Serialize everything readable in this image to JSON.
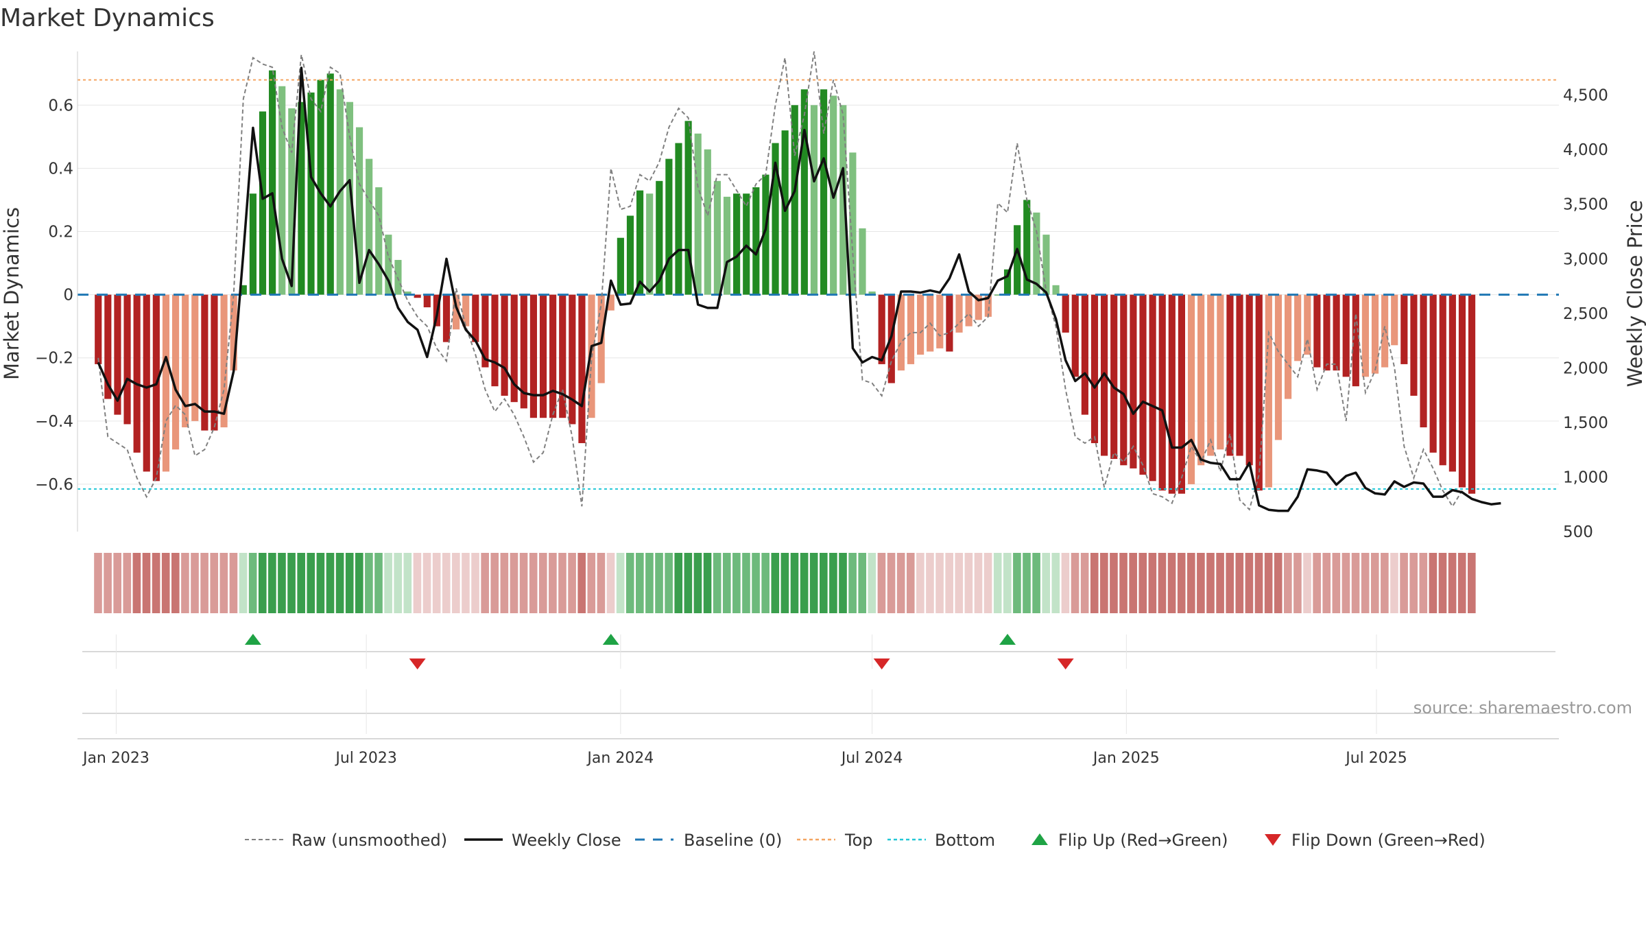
{
  "chart_data": {
    "type": "bar",
    "title": "Market Dynamics",
    "ylabel_left": "Market Dynamics",
    "ylabel_right": "Weekly Close Price",
    "source": "source: sharemaestro.com",
    "x_start": "2022-12-19",
    "x_step_days": 7,
    "x_range": [
      "2022-12-04",
      "2025-11-10"
    ],
    "ylim_left": [
      -0.75,
      0.77
    ],
    "ylim_right": [
      500,
      4900
    ],
    "yticks_left": [
      {
        "v": 0.6,
        "label": "0.6"
      },
      {
        "v": 0.4,
        "label": "0.4"
      },
      {
        "v": 0.2,
        "label": "0.2"
      },
      {
        "v": 0,
        "label": "0"
      },
      {
        "v": -0.2,
        "label": "−0.2"
      },
      {
        "v": -0.4,
        "label": "−0.4"
      },
      {
        "v": -0.6,
        "label": "−0.6"
      }
    ],
    "yticks_right": [
      {
        "v": 4500,
        "label": "4,500"
      },
      {
        "v": 4000,
        "label": "4,000"
      },
      {
        "v": 3500,
        "label": "3,500"
      },
      {
        "v": 3000,
        "label": "3,000"
      },
      {
        "v": 2500,
        "label": "2,500"
      },
      {
        "v": 2000,
        "label": "2,000"
      },
      {
        "v": 1500,
        "label": "1,500"
      },
      {
        "v": 1000,
        "label": "1,000"
      },
      {
        "v": 500,
        "label": "500"
      }
    ],
    "xticks": [
      {
        "date": "2023-01-01",
        "label": "Jan 2023"
      },
      {
        "date": "2023-07-01",
        "label": "Jul 2023"
      },
      {
        "date": "2024-01-01",
        "label": "Jan 2024"
      },
      {
        "date": "2024-07-01",
        "label": "Jul 2024"
      },
      {
        "date": "2025-01-01",
        "label": "Jan 2025"
      },
      {
        "date": "2025-07-01",
        "label": "Jul 2025"
      }
    ],
    "top_line": 0.68,
    "bottom_line": -0.615,
    "baseline": 0,
    "grid": true,
    "legend_position": "bottom",
    "series": [
      {
        "name": "Market Dynamics",
        "kind": "bar",
        "values": [
          -0.22,
          -0.33,
          -0.38,
          -0.41,
          -0.5,
          -0.56,
          -0.59,
          -0.56,
          -0.49,
          -0.42,
          -0.4,
          -0.43,
          -0.43,
          -0.42,
          -0.24,
          0.03,
          0.32,
          0.58,
          0.71,
          0.66,
          0.59,
          0.61,
          0.64,
          0.68,
          0.7,
          0.65,
          0.61,
          0.53,
          0.43,
          0.34,
          0.19,
          0.11,
          0.01,
          -0.01,
          -0.04,
          -0.1,
          -0.15,
          -0.11,
          -0.1,
          -0.15,
          -0.23,
          -0.29,
          -0.32,
          -0.34,
          -0.36,
          -0.39,
          -0.39,
          -0.39,
          -0.39,
          -0.41,
          -0.47,
          -0.39,
          -0.28,
          -0.05,
          0.18,
          0.25,
          0.33,
          0.32,
          0.36,
          0.43,
          0.48,
          0.55,
          0.51,
          0.46,
          0.36,
          0.31,
          0.32,
          0.32,
          0.34,
          0.38,
          0.48,
          0.52,
          0.6,
          0.65,
          0.6,
          0.65,
          0.63,
          0.6,
          0.45,
          0.21,
          0.01,
          -0.22,
          -0.28,
          -0.24,
          -0.22,
          -0.19,
          -0.18,
          -0.17,
          -0.18,
          -0.12,
          -0.1,
          -0.08,
          -0.07,
          0.0,
          0.08,
          0.22,
          0.3,
          0.26,
          0.19,
          0.03,
          -0.12,
          -0.26,
          -0.38,
          -0.47,
          -0.51,
          -0.52,
          -0.54,
          -0.55,
          -0.57,
          -0.59,
          -0.62,
          -0.63,
          -0.63,
          -0.6,
          -0.54,
          -0.51,
          -0.49,
          -0.51,
          -0.51,
          -0.54,
          -0.62,
          -0.61,
          -0.46,
          -0.33,
          -0.21,
          -0.19,
          -0.23,
          -0.24,
          -0.24,
          -0.26,
          -0.29,
          -0.26,
          -0.25,
          -0.23,
          -0.16,
          -0.22,
          -0.32,
          -0.42,
          -0.5,
          -0.54,
          -0.56,
          -0.61,
          -0.63
        ]
      },
      {
        "name": "Raw (unsmoothed)",
        "kind": "line",
        "values": [
          -0.2,
          -0.45,
          -0.47,
          -0.49,
          -0.58,
          -0.64,
          -0.58,
          -0.4,
          -0.35,
          -0.38,
          -0.51,
          -0.49,
          -0.42,
          -0.3,
          0.0,
          0.62,
          0.75,
          0.73,
          0.72,
          0.53,
          0.45,
          0.76,
          0.62,
          0.58,
          0.72,
          0.7,
          0.5,
          0.35,
          0.3,
          0.25,
          0.12,
          0.05,
          -0.02,
          -0.07,
          -0.1,
          -0.17,
          -0.21,
          0.02,
          -0.1,
          -0.19,
          -0.3,
          -0.37,
          -0.33,
          -0.38,
          -0.45,
          -0.53,
          -0.5,
          -0.38,
          -0.3,
          -0.45,
          -0.67,
          -0.2,
          -0.03,
          0.4,
          0.27,
          0.28,
          0.38,
          0.36,
          0.42,
          0.53,
          0.59,
          0.56,
          0.34,
          0.25,
          0.38,
          0.38,
          0.33,
          0.28,
          0.35,
          0.38,
          0.6,
          0.75,
          0.44,
          0.57,
          0.77,
          0.51,
          0.68,
          0.57,
          0.13,
          -0.27,
          -0.28,
          -0.32,
          -0.21,
          -0.15,
          -0.12,
          -0.12,
          -0.09,
          -0.13,
          -0.12,
          -0.09,
          -0.06,
          -0.1,
          -0.07,
          0.29,
          0.26,
          0.48,
          0.3,
          0.2,
          0.01,
          -0.1,
          -0.3,
          -0.45,
          -0.47,
          -0.45,
          -0.61,
          -0.5,
          -0.53,
          -0.48,
          -0.54,
          -0.63,
          -0.64,
          -0.66,
          -0.58,
          -0.48,
          -0.53,
          -0.46,
          -0.56,
          -0.44,
          -0.65,
          -0.68,
          -0.57,
          -0.12,
          -0.18,
          -0.22,
          -0.26,
          -0.14,
          -0.3,
          -0.22,
          -0.22,
          -0.4,
          -0.06,
          -0.31,
          -0.24,
          -0.1,
          -0.23,
          -0.48,
          -0.58,
          -0.49,
          -0.55,
          -0.62,
          -0.67,
          -0.62
        ]
      },
      {
        "name": "Weekly Close",
        "kind": "line",
        "axis": "right",
        "values": [
          2050,
          1850,
          1700,
          1900,
          1850,
          1820,
          1850,
          2100,
          1800,
          1650,
          1670,
          1600,
          1600,
          1580,
          1970,
          3050,
          4200,
          3550,
          3600,
          3000,
          2750,
          4750,
          3750,
          3600,
          3480,
          3620,
          3720,
          2780,
          3080,
          2950,
          2800,
          2550,
          2420,
          2350,
          2100,
          2480,
          3000,
          2560,
          2350,
          2250,
          2080,
          2050,
          2000,
          1850,
          1770,
          1750,
          1750,
          1790,
          1760,
          1710,
          1650,
          2200,
          2230,
          2800,
          2580,
          2590,
          2790,
          2700,
          2800,
          3000,
          3080,
          3080,
          2580,
          2550,
          2550,
          2970,
          3020,
          3120,
          3040,
          3270,
          3880,
          3440,
          3620,
          4180,
          3710,
          3920,
          3560,
          3830,
          2180,
          2050,
          2100,
          2070,
          2290,
          2700,
          2700,
          2690,
          2710,
          2690,
          2820,
          3040,
          2700,
          2620,
          2640,
          2800,
          2840,
          3090,
          2810,
          2770,
          2690,
          2450,
          2070,
          1880,
          1950,
          1820,
          1950,
          1820,
          1760,
          1580,
          1690,
          1650,
          1610,
          1270,
          1270,
          1340,
          1160,
          1130,
          1120,
          980,
          980,
          1130,
          740,
          700,
          690,
          690,
          820,
          1070,
          1060,
          1040,
          930,
          1010,
          1040,
          900,
          850,
          840,
          960,
          910,
          950,
          940,
          820,
          820,
          880,
          860,
          800,
          770,
          750,
          760
        ]
      }
    ]
  },
  "strip": {
    "colors": {
      "green_dark": "#3a9e4d",
      "green_mid": "#6dba7c",
      "green_light": "#c2e3c8",
      "red_dark": "#c97572",
      "red_mid": "#d99b98",
      "red_light": "#eccdcc"
    }
  },
  "flips": {
    "up": [
      "2023-04-10",
      "2023-12-25",
      "2024-10-07"
    ],
    "down": [
      "2023-08-07",
      "2024-07-08",
      "2024-11-18"
    ],
    "colors": {
      "up": "#1fa345",
      "down": "#d62728"
    }
  },
  "legend": [
    {
      "label": "Raw (unsmoothed)",
      "kind": "dash-gray"
    },
    {
      "label": "Weekly Close",
      "kind": "solid-black"
    },
    {
      "label": "Baseline (0)",
      "kind": "dash-blue"
    },
    {
      "label": "Top",
      "kind": "dot-orange"
    },
    {
      "label": "Bottom",
      "kind": "dot-cyan"
    },
    {
      "label": "Flip Up (Red→Green)",
      "kind": "tri-up"
    },
    {
      "label": "Flip Down (Green→Red)",
      "kind": "tri-down"
    }
  ],
  "colors": {
    "bar_green_dark": "#228a22",
    "bar_green_light": "#7fc07f",
    "bar_red_dark": "#b22222",
    "bar_red_light": "#e9967a",
    "raw": "#808080",
    "close": "#111111",
    "baseline": "#1f77b4",
    "top": "#f4a460",
    "bottom": "#22c7d6",
    "grid": "#e6e6e6",
    "axis": "#cccccc"
  }
}
